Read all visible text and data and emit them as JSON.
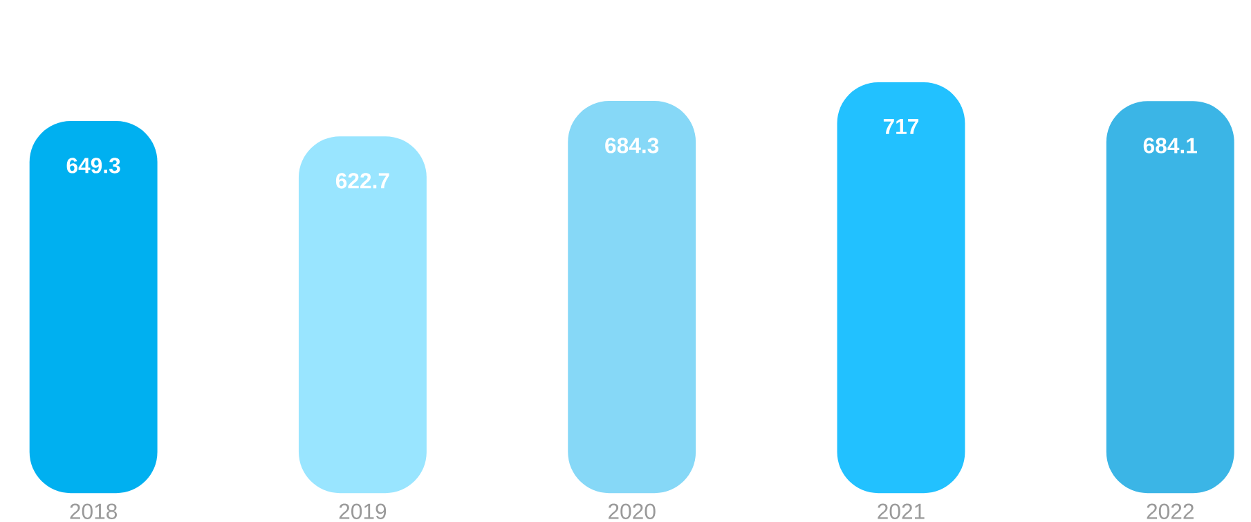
{
  "chart_data": {
    "type": "bar",
    "categories": [
      "2018",
      "2019",
      "2020",
      "2021",
      "2022"
    ],
    "values": [
      649.3,
      622.7,
      684.3,
      717,
      684.1
    ],
    "colors": [
      "#00b0f0",
      "#99e5ff",
      "#86d8f7",
      "#22c1ff",
      "#3bb5e6"
    ],
    "data_labels": true,
    "grid": false,
    "tick_labels": "x"
  }
}
